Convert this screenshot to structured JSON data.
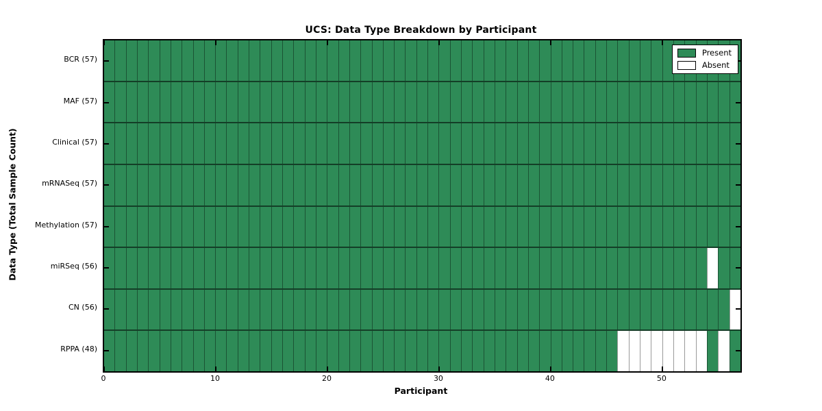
{
  "figure": {
    "title": "UCS: Data Type Breakdown by Participant",
    "xlabel": "Participant",
    "ylabel": "Data Type (Total Sample Count)"
  },
  "legend": {
    "present_label": "Present",
    "absent_label": "Absent"
  },
  "colors": {
    "present": "#2E8B57",
    "absent": "#FFFFFF",
    "frame": "#000000"
  },
  "chart_data": {
    "type": "heatmap",
    "title": "UCS: Data Type Breakdown by Participant",
    "xlabel": "Participant",
    "ylabel": "Data Type (Total Sample Count)",
    "n_participants": 57,
    "x_ticks": [
      0,
      10,
      20,
      30,
      40,
      50
    ],
    "xlim": [
      0,
      57
    ],
    "legend_entries": [
      "Present",
      "Absent"
    ],
    "legend_position": "upper right",
    "grid": true,
    "rows": [
      {
        "label": "BCR (57)",
        "data_type": "BCR",
        "present_count": 57,
        "absent_participants": []
      },
      {
        "label": "MAF (57)",
        "data_type": "MAF",
        "present_count": 57,
        "absent_participants": []
      },
      {
        "label": "Clinical (57)",
        "data_type": "Clinical",
        "present_count": 57,
        "absent_participants": []
      },
      {
        "label": "mRNASeq (57)",
        "data_type": "mRNASeq",
        "present_count": 57,
        "absent_participants": []
      },
      {
        "label": "Methylation (57)",
        "data_type": "Methylation",
        "present_count": 57,
        "absent_participants": []
      },
      {
        "label": "miRSeq (56)",
        "data_type": "miRSeq",
        "present_count": 56,
        "absent_participants": [
          54
        ]
      },
      {
        "label": "CN (56)",
        "data_type": "CN",
        "present_count": 56,
        "absent_participants": [
          56
        ]
      },
      {
        "label": "RPPA (48)",
        "data_type": "RPPA",
        "present_count": 48,
        "absent_participants": [
          46,
          47,
          48,
          49,
          50,
          51,
          52,
          53,
          55
        ]
      }
    ]
  }
}
